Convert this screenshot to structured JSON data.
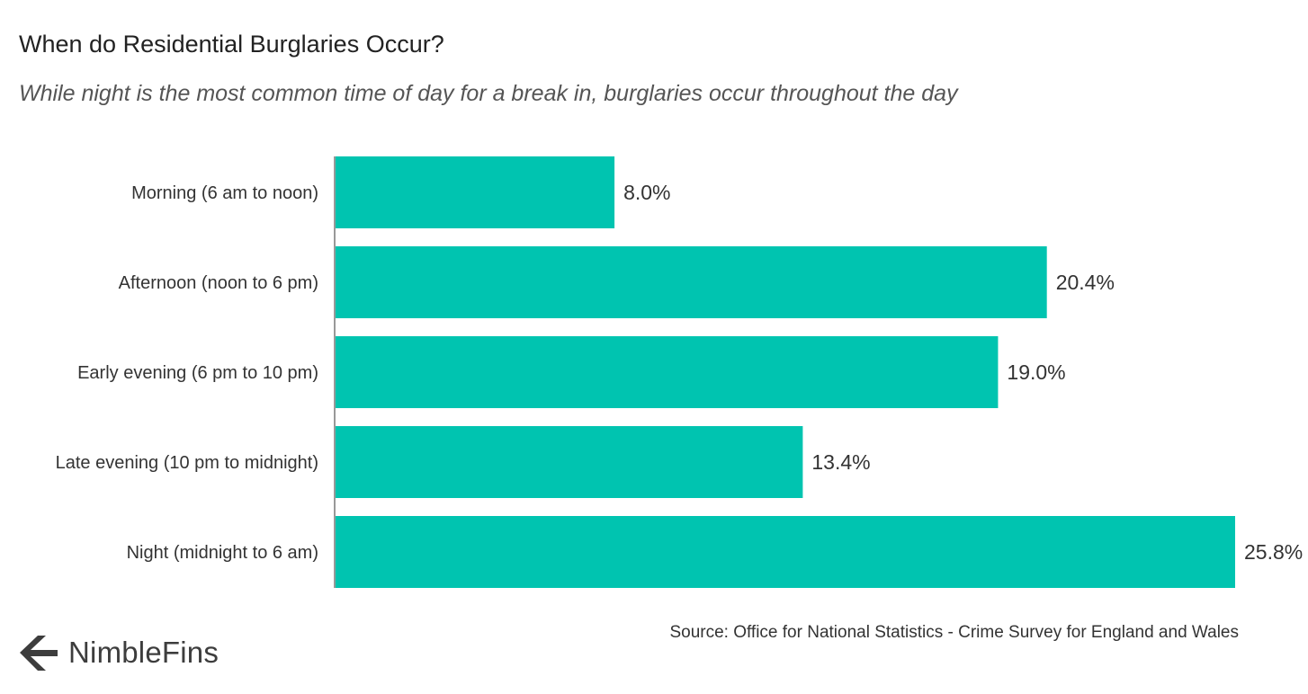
{
  "chart_data": {
    "type": "bar",
    "orientation": "horizontal",
    "title": "When do Residential Burglaries Occur?",
    "subtitle": "While night is the most common time of day for a break in, burglaries occur throughout the day",
    "categories": [
      "Morning (6 am to noon)",
      "Afternoon (noon to 6 pm)",
      "Early evening (6 pm to 10 pm)",
      "Late evening (10 pm to midnight)",
      "Night (midnight to 6 am)"
    ],
    "values": [
      8.0,
      20.4,
      19.0,
      13.4,
      25.8
    ],
    "value_labels": [
      "8.0%",
      "20.4%",
      "19.0%",
      "13.4%",
      "25.8%"
    ],
    "xlim": [
      0,
      25.8
    ],
    "grid": false,
    "bar_color": "#00c4b0"
  },
  "source": "Source: Office for National Statistics - Crime Survey for England and Wales",
  "logo": {
    "text": "NimbleFins",
    "icon": "nimblefins-arrow-icon",
    "color": "#3d3d3d"
  }
}
